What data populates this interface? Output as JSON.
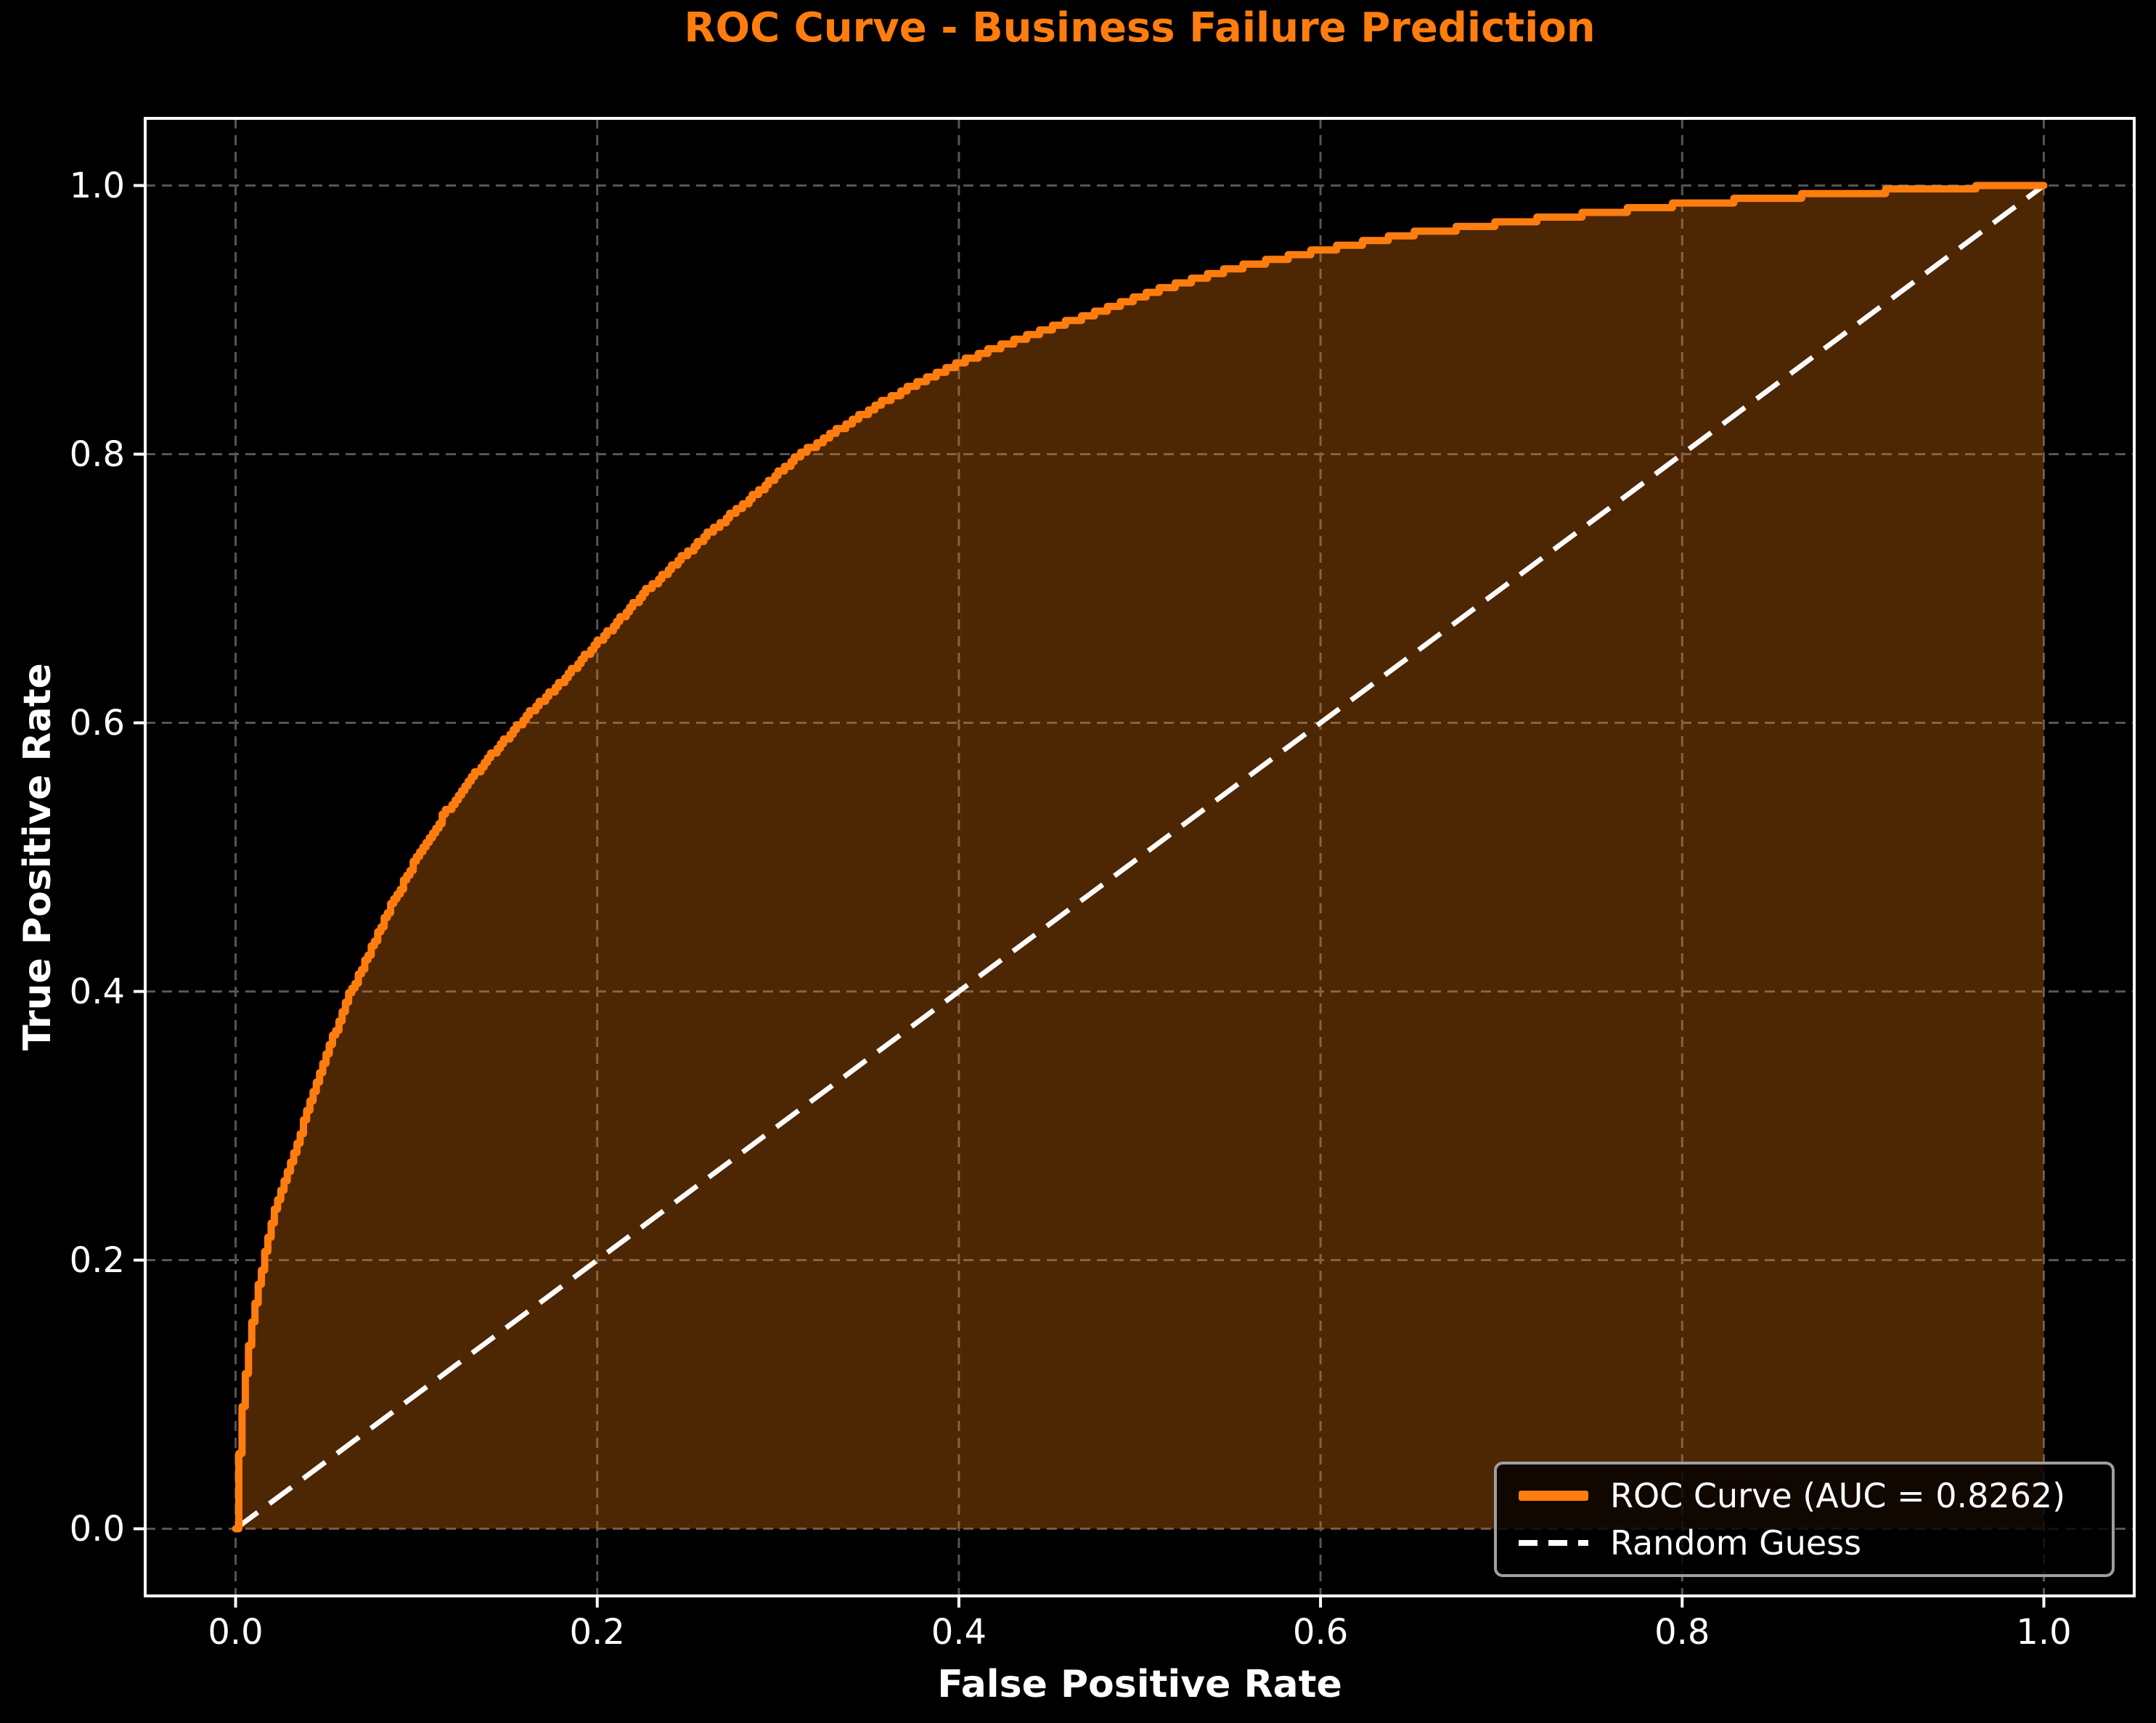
{
  "chart_data": {
    "type": "line",
    "title": "ROC Curve - Business Failure Prediction",
    "xlabel": "False Positive Rate",
    "ylabel": "True Positive Rate",
    "xlim": [
      -0.05,
      1.05
    ],
    "ylim": [
      -0.05,
      1.05
    ],
    "grid": true,
    "grid_style": "dashed",
    "background": "#000000",
    "xticks": {
      "values": [
        0.0,
        0.2,
        0.4,
        0.6,
        0.8,
        1.0
      ],
      "labels": [
        "0.0",
        "0.2",
        "0.4",
        "0.6",
        "0.8",
        "1.0"
      ]
    },
    "yticks": {
      "values": [
        0.0,
        0.2,
        0.4,
        0.6,
        0.8,
        1.0
      ],
      "labels": [
        "0.0",
        "0.2",
        "0.4",
        "0.6",
        "0.8",
        "1.0"
      ]
    },
    "series": [
      {
        "name": "ROC Curve (AUC = 0.8262)",
        "auc": 0.8262,
        "color": "#ff7d0e",
        "fill_color": "rgba(255,125,14,0.30)",
        "line_width": 10,
        "points": [
          [
            0.0,
            0.0
          ],
          [
            0.0015,
            0.05
          ],
          [
            0.003,
            0.085
          ],
          [
            0.005,
            0.112
          ],
          [
            0.008,
            0.148
          ],
          [
            0.012,
            0.178
          ],
          [
            0.016,
            0.205
          ],
          [
            0.022,
            0.24
          ],
          [
            0.03,
            0.272
          ],
          [
            0.038,
            0.305
          ],
          [
            0.048,
            0.345
          ],
          [
            0.06,
            0.39
          ],
          [
            0.072,
            0.425
          ],
          [
            0.085,
            0.462
          ],
          [
            0.1,
            0.5
          ],
          [
            0.115,
            0.532
          ],
          [
            0.135,
            0.567
          ],
          [
            0.157,
            0.6
          ],
          [
            0.178,
            0.628
          ],
          [
            0.2,
            0.66
          ],
          [
            0.228,
            0.7
          ],
          [
            0.256,
            0.735
          ],
          [
            0.285,
            0.768
          ],
          [
            0.312,
            0.8
          ],
          [
            0.333,
            0.818
          ],
          [
            0.354,
            0.836
          ],
          [
            0.377,
            0.853
          ],
          [
            0.4,
            0.868
          ],
          [
            0.425,
            0.882
          ],
          [
            0.452,
            0.895
          ],
          [
            0.475,
            0.905
          ],
          [
            0.5,
            0.918
          ],
          [
            0.525,
            0.928
          ],
          [
            0.55,
            0.938
          ],
          [
            0.575,
            0.945
          ],
          [
            0.6,
            0.952
          ],
          [
            0.65,
            0.964
          ],
          [
            0.7,
            0.972
          ],
          [
            0.75,
            0.979
          ],
          [
            0.8,
            0.986
          ],
          [
            0.85,
            0.991
          ],
          [
            0.9,
            0.995
          ],
          [
            0.93,
            0.997
          ],
          [
            0.955,
            0.9985
          ],
          [
            0.97,
            1.0
          ],
          [
            1.0,
            1.0
          ]
        ]
      },
      {
        "name": "Random Guess",
        "color": "#ffffff",
        "style": "dashed",
        "line_width": 7,
        "points": [
          [
            0,
            0
          ],
          [
            1,
            1
          ]
        ]
      }
    ],
    "legend": {
      "position": "lower right",
      "items": [
        {
          "label": "ROC Curve (AUC = 0.8262)",
          "swatch": "solid-orange-line"
        },
        {
          "label": "Random Guess",
          "swatch": "dashed-white-line"
        }
      ]
    },
    "style": {
      "title_color": "#ff7d0e",
      "accent": "#ff7d0e",
      "spine_color": "#ffffff",
      "grid_color": "#555555",
      "tick_color": "#ffffff",
      "label_color": "#ffffff",
      "legend_border": "#9f9f9f"
    }
  }
}
